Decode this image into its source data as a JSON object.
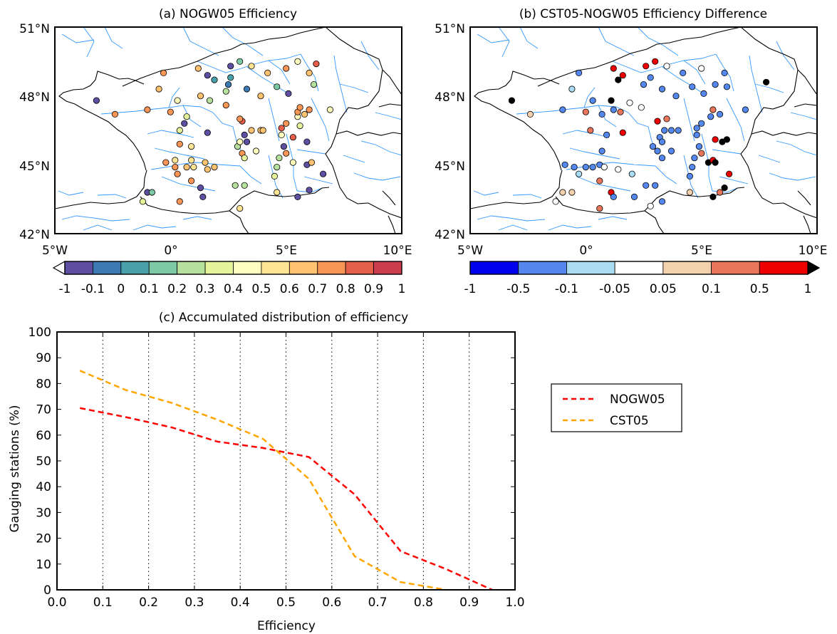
{
  "maps": [
    {
      "title": "(a) NOGW05 Efficiency",
      "lat_labels": [
        "51°N",
        "48°N",
        "45°N",
        "42°N"
      ],
      "lon_labels": [
        "5°W",
        "0°",
        "5°E",
        "10°E"
      ],
      "colorbar": {
        "labels": [
          "-1",
          "-0.1",
          "0",
          "0.1",
          "0.2",
          "0.3",
          "0.4",
          "0.5",
          "0.6",
          "0.7",
          "0.8",
          "0.9",
          "1"
        ],
        "colors": [
          "#5e4fa2",
          "#3d7ab4",
          "#4aa0a8",
          "#7dc8a4",
          "#b5e19d",
          "#e5f49b",
          "#fffebe",
          "#fee493",
          "#fdc371",
          "#f99555",
          "#e55f4a",
          "#cb3d4e"
        ],
        "extend_left": true
      },
      "stations": [
        {
          "lon": -3.2,
          "lat": 47.8,
          "c": 0
        },
        {
          "lon": -0.3,
          "lat": 49.0,
          "c": 9
        },
        {
          "lon": 1.2,
          "lat": 49.2,
          "c": 8
        },
        {
          "lon": 1.6,
          "lat": 48.9,
          "c": 0
        },
        {
          "lon": 2.6,
          "lat": 49.3,
          "c": 0
        },
        {
          "lon": 3.0,
          "lat": 49.5,
          "c": 3
        },
        {
          "lon": 3.5,
          "lat": 49.3,
          "c": 7
        },
        {
          "lon": 4.2,
          "lat": 49.0,
          "c": 8
        },
        {
          "lon": 5.0,
          "lat": 49.2,
          "c": 9
        },
        {
          "lon": 5.5,
          "lat": 49.5,
          "c": 6
        },
        {
          "lon": 6.0,
          "lat": 49.0,
          "c": 8
        },
        {
          "lon": 6.3,
          "lat": 49.4,
          "c": 10
        },
        {
          "lon": 1.9,
          "lat": 48.7,
          "c": 2
        },
        {
          "lon": 2.6,
          "lat": 48.8,
          "c": 2
        },
        {
          "lon": 3.3,
          "lat": 48.3,
          "c": 1
        },
        {
          "lon": 3.9,
          "lat": 48.0,
          "c": 8
        },
        {
          "lon": 4.6,
          "lat": 48.4,
          "c": 3
        },
        {
          "lon": 5.1,
          "lat": 48.1,
          "c": 0
        },
        {
          "lon": 6.2,
          "lat": 48.5,
          "c": 4
        },
        {
          "lon": 2.5,
          "lat": 48.5,
          "c": 1
        },
        {
          "lon": -0.5,
          "lat": 48.3,
          "c": 8
        },
        {
          "lon": 0.3,
          "lat": 47.8,
          "c": 6
        },
        {
          "lon": 1.3,
          "lat": 48.0,
          "c": 8
        },
        {
          "lon": 1.7,
          "lat": 47.8,
          "c": 4
        },
        {
          "lon": 2.4,
          "lat": 47.6,
          "c": 9
        },
        {
          "lon": -2.4,
          "lat": 47.2,
          "c": 9
        },
        {
          "lon": -1.0,
          "lat": 47.4,
          "c": 9
        },
        {
          "lon": 0.0,
          "lat": 47.3,
          "c": 9
        },
        {
          "lon": 0.7,
          "lat": 47.1,
          "c": 5
        },
        {
          "lon": 0.6,
          "lat": 46.8,
          "c": 0
        },
        {
          "lon": 0.4,
          "lat": 46.5,
          "c": 5
        },
        {
          "lon": 1.6,
          "lat": 46.4,
          "c": 0
        },
        {
          "lon": 0.9,
          "lat": 45.8,
          "c": 7
        },
        {
          "lon": 0.4,
          "lat": 45.9,
          "c": 9
        },
        {
          "lon": -0.2,
          "lat": 45.1,
          "c": 9
        },
        {
          "lon": 0.2,
          "lat": 45.2,
          "c": 7
        },
        {
          "lon": 0.9,
          "lat": 45.2,
          "c": 7
        },
        {
          "lon": 1.5,
          "lat": 45.1,
          "c": 8
        },
        {
          "lon": 1.9,
          "lat": 44.9,
          "c": 8
        },
        {
          "lon": 1.6,
          "lat": 44.8,
          "c": 8
        },
        {
          "lon": 1.0,
          "lat": 44.9,
          "c": 7
        },
        {
          "lon": 0.7,
          "lat": 44.9,
          "c": 8
        },
        {
          "lon": 0.2,
          "lat": 44.9,
          "c": 9
        },
        {
          "lon": 0.3,
          "lat": 44.6,
          "c": 9
        },
        {
          "lon": 0.9,
          "lat": 44.3,
          "c": 9
        },
        {
          "lon": 0.4,
          "lat": 43.4,
          "c": 9
        },
        {
          "lon": -1.0,
          "lat": 43.8,
          "c": 0
        },
        {
          "lon": -0.8,
          "lat": 43.8,
          "c": 3
        },
        {
          "lon": -1.2,
          "lat": 43.4,
          "c": 5
        },
        {
          "lon": 1.4,
          "lat": 43.6,
          "c": 0
        },
        {
          "lon": 1.3,
          "lat": 44.0,
          "c": 0
        },
        {
          "lon": 2.8,
          "lat": 44.1,
          "c": 4
        },
        {
          "lon": 3.2,
          "lat": 44.1,
          "c": 4
        },
        {
          "lon": 3.0,
          "lat": 43.1,
          "c": 7
        },
        {
          "lon": 4.6,
          "lat": 43.8,
          "c": 7
        },
        {
          "lon": 4.5,
          "lat": 44.5,
          "c": 5
        },
        {
          "lon": 4.6,
          "lat": 44.9,
          "c": 4
        },
        {
          "lon": 4.7,
          "lat": 45.3,
          "c": 4
        },
        {
          "lon": 5.0,
          "lat": 45.5,
          "c": 9
        },
        {
          "lon": 4.9,
          "lat": 45.8,
          "c": 0
        },
        {
          "lon": 4.8,
          "lat": 46.3,
          "c": 6
        },
        {
          "lon": 4.8,
          "lat": 46.6,
          "c": 10
        },
        {
          "lon": 5.0,
          "lat": 46.8,
          "c": 9
        },
        {
          "lon": 5.5,
          "lat": 47.1,
          "c": 6
        },
        {
          "lon": 5.5,
          "lat": 47.3,
          "c": 9
        },
        {
          "lon": 5.6,
          "lat": 47.5,
          "c": 9
        },
        {
          "lon": 5.8,
          "lat": 47.2,
          "c": 8
        },
        {
          "lon": 6.0,
          "lat": 47.4,
          "c": 9
        },
        {
          "lon": 6.9,
          "lat": 47.4,
          "c": 6
        },
        {
          "lon": 5.3,
          "lat": 46.2,
          "c": 10
        },
        {
          "lon": 5.6,
          "lat": 46.7,
          "c": 5
        },
        {
          "lon": 5.9,
          "lat": 46.0,
          "c": 0
        },
        {
          "lon": 5.3,
          "lat": 45.1,
          "c": 6
        },
        {
          "lon": 5.9,
          "lat": 45.0,
          "c": 0
        },
        {
          "lon": 6.1,
          "lat": 45.1,
          "c": 8
        },
        {
          "lon": 6.6,
          "lat": 44.6,
          "c": 0
        },
        {
          "lon": 6.0,
          "lat": 43.9,
          "c": 0
        },
        {
          "lon": 5.5,
          "lat": 43.6,
          "c": 0
        },
        {
          "lon": 3.1,
          "lat": 46.9,
          "c": 10
        },
        {
          "lon": 3.5,
          "lat": 46.5,
          "c": 8
        },
        {
          "lon": 3.9,
          "lat": 46.5,
          "c": 8
        },
        {
          "lon": 4.0,
          "lat": 46.5,
          "c": 8
        },
        {
          "lon": 3.2,
          "lat": 46.3,
          "c": 0
        },
        {
          "lon": 3.3,
          "lat": 46.0,
          "c": 0
        },
        {
          "lon": 3.1,
          "lat": 45.5,
          "c": 9
        },
        {
          "lon": 3.2,
          "lat": 45.3,
          "c": 5
        },
        {
          "lon": 3.7,
          "lat": 45.6,
          "c": 6
        },
        {
          "lon": 2.9,
          "lat": 45.8,
          "c": 4
        },
        {
          "lon": 3.0,
          "lat": 46.0,
          "c": 6
        },
        {
          "lon": 2.4,
          "lat": 48.2,
          "c": 4
        },
        {
          "lon": 3.0,
          "lat": 47.0,
          "c": 9
        }
      ]
    },
    {
      "title": "(b) CST05-NOGW05 Efficiency Difference",
      "lat_labels": [
        "51°N",
        "48°N",
        "45°N",
        "42°N"
      ],
      "lon_labels": [
        "5°W",
        "0°",
        "5°E",
        "10°E"
      ],
      "colorbar": {
        "labels": [
          "-1",
          "-0.5",
          "-0.1",
          "-0.05",
          "0.05",
          "0.1",
          "0.5",
          "1"
        ],
        "colors": [
          "#0000ee",
          "#5588ee",
          "#aadcf4",
          "#ffffff",
          "#f3d1ad",
          "#e8765a",
          "#ee0000"
        ],
        "extend_right": true
      },
      "stations": [
        {
          "lon": -3.2,
          "lat": 47.8,
          "c": 7
        },
        {
          "lon": -0.3,
          "lat": 49.0,
          "c": 1
        },
        {
          "lon": 1.2,
          "lat": 49.2,
          "c": 6
        },
        {
          "lon": 1.6,
          "lat": 48.9,
          "c": 6
        },
        {
          "lon": 2.6,
          "lat": 49.3,
          "c": 6
        },
        {
          "lon": 3.0,
          "lat": 49.5,
          "c": 6
        },
        {
          "lon": 3.5,
          "lat": 49.3,
          "c": 3
        },
        {
          "lon": 4.2,
          "lat": 49.0,
          "c": 1
        },
        {
          "lon": 5.0,
          "lat": 49.2,
          "c": 3
        },
        {
          "lon": 6.0,
          "lat": 49.0,
          "c": 1
        },
        {
          "lon": 7.8,
          "lat": 48.6,
          "c": 7
        },
        {
          "lon": 1.4,
          "lat": 48.7,
          "c": 7
        },
        {
          "lon": 2.8,
          "lat": 48.8,
          "c": 1
        },
        {
          "lon": 3.3,
          "lat": 48.3,
          "c": 1
        },
        {
          "lon": 3.9,
          "lat": 48.0,
          "c": 1
        },
        {
          "lon": 4.6,
          "lat": 48.4,
          "c": 1
        },
        {
          "lon": 5.1,
          "lat": 48.1,
          "c": 1
        },
        {
          "lon": 5.6,
          "lat": 48.5,
          "c": 1
        },
        {
          "lon": 6.1,
          "lat": 48.4,
          "c": 1
        },
        {
          "lon": 2.5,
          "lat": 48.5,
          "c": 1
        },
        {
          "lon": -0.6,
          "lat": 48.3,
          "c": 2
        },
        {
          "lon": 0.3,
          "lat": 47.8,
          "c": 1
        },
        {
          "lon": 1.1,
          "lat": 47.8,
          "c": 7
        },
        {
          "lon": 1.9,
          "lat": 47.7,
          "c": 3
        },
        {
          "lon": 2.4,
          "lat": 47.5,
          "c": 3
        },
        {
          "lon": -2.4,
          "lat": 47.2,
          "c": 4
        },
        {
          "lon": -1.0,
          "lat": 47.4,
          "c": 1
        },
        {
          "lon": 0.0,
          "lat": 47.3,
          "c": 5
        },
        {
          "lon": 0.7,
          "lat": 47.2,
          "c": 1
        },
        {
          "lon": 1.2,
          "lat": 47.4,
          "c": 1
        },
        {
          "lon": 1.5,
          "lat": 47.3,
          "c": 5
        },
        {
          "lon": 0.2,
          "lat": 46.5,
          "c": 5
        },
        {
          "lon": 1.6,
          "lat": 46.4,
          "c": 6
        },
        {
          "lon": 0.9,
          "lat": 46.3,
          "c": 1
        },
        {
          "lon": 0.7,
          "lat": 45.6,
          "c": 1
        },
        {
          "lon": 0.6,
          "lat": 45.0,
          "c": 1
        },
        {
          "lon": -0.9,
          "lat": 45.0,
          "c": 1
        },
        {
          "lon": -0.5,
          "lat": 44.9,
          "c": 1
        },
        {
          "lon": 0.0,
          "lat": 44.9,
          "c": 1
        },
        {
          "lon": 0.3,
          "lat": 44.9,
          "c": 1
        },
        {
          "lon": 0.8,
          "lat": 44.9,
          "c": 3
        },
        {
          "lon": 1.4,
          "lat": 44.8,
          "c": 3
        },
        {
          "lon": 2.0,
          "lat": 44.6,
          "c": 2
        },
        {
          "lon": -0.3,
          "lat": 44.6,
          "c": 2
        },
        {
          "lon": 0.6,
          "lat": 44.3,
          "c": 5
        },
        {
          "lon": 1.1,
          "lat": 43.8,
          "c": 6
        },
        {
          "lon": -1.0,
          "lat": 43.8,
          "c": 4
        },
        {
          "lon": -0.6,
          "lat": 43.8,
          "c": 4
        },
        {
          "lon": -1.3,
          "lat": 43.4,
          "c": 3
        },
        {
          "lon": 0.6,
          "lat": 43.1,
          "c": 5
        },
        {
          "lon": 1.2,
          "lat": 43.6,
          "c": 1
        },
        {
          "lon": 2.6,
          "lat": 44.1,
          "c": 1
        },
        {
          "lon": 3.0,
          "lat": 44.1,
          "c": 1
        },
        {
          "lon": 2.8,
          "lat": 43.2,
          "c": 3
        },
        {
          "lon": 3.3,
          "lat": 43.4,
          "c": 1
        },
        {
          "lon": 4.5,
          "lat": 44.5,
          "c": 1
        },
        {
          "lon": 4.6,
          "lat": 44.9,
          "c": 1
        },
        {
          "lon": 4.7,
          "lat": 45.3,
          "c": 1
        },
        {
          "lon": 4.5,
          "lat": 43.8,
          "c": 4
        },
        {
          "lon": 5.0,
          "lat": 45.5,
          "c": 5
        },
        {
          "lon": 4.9,
          "lat": 45.8,
          "c": 1
        },
        {
          "lon": 4.8,
          "lat": 46.3,
          "c": 1
        },
        {
          "lon": 4.8,
          "lat": 46.6,
          "c": 1
        },
        {
          "lon": 5.0,
          "lat": 46.8,
          "c": 1
        },
        {
          "lon": 5.4,
          "lat": 47.1,
          "c": 1
        },
        {
          "lon": 5.5,
          "lat": 47.4,
          "c": 5
        },
        {
          "lon": 5.8,
          "lat": 47.2,
          "c": 1
        },
        {
          "lon": 6.9,
          "lat": 47.4,
          "c": 1
        },
        {
          "lon": 5.6,
          "lat": 46.1,
          "c": 6
        },
        {
          "lon": 5.9,
          "lat": 46.0,
          "c": 7
        },
        {
          "lon": 6.1,
          "lat": 46.1,
          "c": 7
        },
        {
          "lon": 5.3,
          "lat": 45.1,
          "c": 7
        },
        {
          "lon": 5.5,
          "lat": 45.2,
          "c": 6
        },
        {
          "lon": 5.6,
          "lat": 45.1,
          "c": 7
        },
        {
          "lon": 6.2,
          "lat": 44.6,
          "c": 6
        },
        {
          "lon": 6.0,
          "lat": 44.0,
          "c": 7
        },
        {
          "lon": 5.8,
          "lat": 43.8,
          "c": 5
        },
        {
          "lon": 5.5,
          "lat": 43.6,
          "c": 7
        },
        {
          "lon": 3.1,
          "lat": 46.9,
          "c": 6
        },
        {
          "lon": 3.4,
          "lat": 46.5,
          "c": 1
        },
        {
          "lon": 3.7,
          "lat": 46.5,
          "c": 1
        },
        {
          "lon": 4.0,
          "lat": 46.5,
          "c": 1
        },
        {
          "lon": 3.2,
          "lat": 46.2,
          "c": 1
        },
        {
          "lon": 3.3,
          "lat": 46.0,
          "c": 1
        },
        {
          "lon": 3.1,
          "lat": 45.6,
          "c": 1
        },
        {
          "lon": 3.3,
          "lat": 45.3,
          "c": 1
        },
        {
          "lon": 3.7,
          "lat": 45.6,
          "c": 1
        },
        {
          "lon": 2.9,
          "lat": 45.8,
          "c": 1
        },
        {
          "lon": 2.1,
          "lat": 43.6,
          "c": 1
        },
        {
          "lon": 3.5,
          "lat": 47.0,
          "c": 5
        }
      ]
    }
  ],
  "chart_data": {
    "type": "line",
    "title": "(c) Accumulated distribution of efficiency",
    "xlabel": "Efficiency",
    "ylabel": "Gauging stations (%)",
    "xlim": [
      0,
      1
    ],
    "ylim": [
      0,
      100
    ],
    "xticks": [
      "0.0",
      "0.1",
      "0.2",
      "0.3",
      "0.4",
      "0.5",
      "0.6",
      "0.7",
      "0.8",
      "0.9",
      "1.0"
    ],
    "yticks": [
      "0",
      "10",
      "20",
      "30",
      "40",
      "50",
      "60",
      "70",
      "80",
      "90",
      "100"
    ],
    "vgrid": [
      0.1,
      0.2,
      0.3,
      0.4,
      0.5,
      0.6,
      0.7,
      0.8,
      0.9
    ],
    "legend_position": "right, outside",
    "series": [
      {
        "name": "NOGW05",
        "color": "#ff0000",
        "x": [
          0.05,
          0.15,
          0.25,
          0.35,
          0.45,
          0.55,
          0.65,
          0.75,
          0.85,
          0.95
        ],
        "y": [
          70.5,
          67,
          63,
          57.5,
          55,
          51.5,
          37,
          15,
          8,
          0
        ]
      },
      {
        "name": "CST05",
        "color": "#ffa500",
        "x": [
          0.05,
          0.15,
          0.25,
          0.35,
          0.45,
          0.55,
          0.65,
          0.75,
          0.85
        ],
        "y": [
          85,
          77.5,
          72.5,
          66,
          58.5,
          43,
          13,
          3,
          0
        ]
      }
    ]
  }
}
